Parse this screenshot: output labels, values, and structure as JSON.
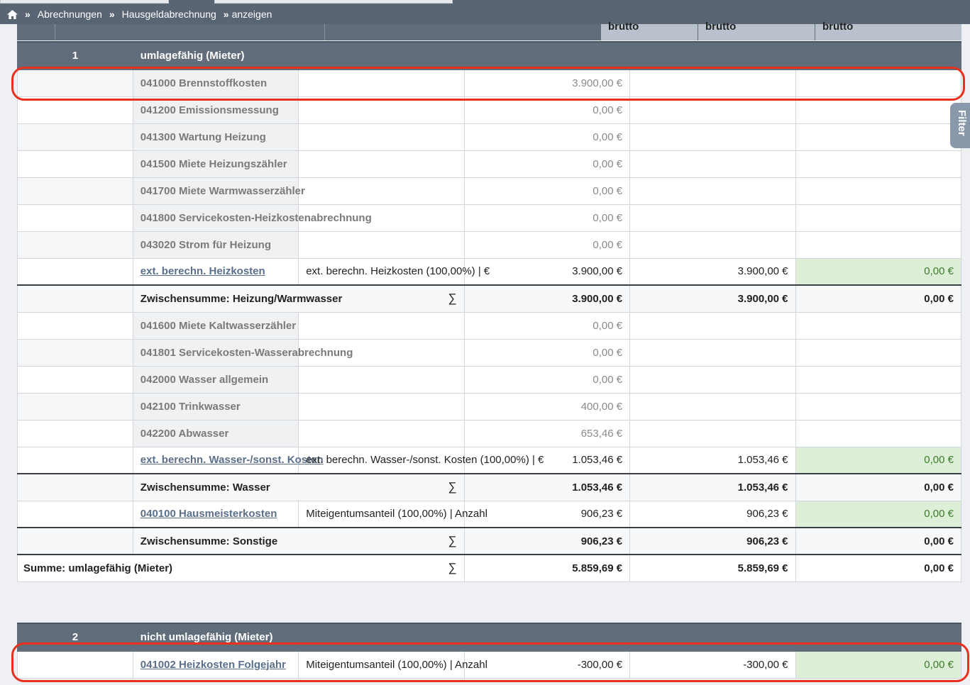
{
  "breadcrumb": {
    "items": [
      "Abrechnungen",
      "Hausgeldabrechnung",
      "anzeigen"
    ],
    "separator": "»"
  },
  "header": {
    "col3": "brutto",
    "col4": "brutto",
    "col5": "brutto"
  },
  "filter_tab": {
    "label": "Filter"
  },
  "section1": {
    "number": "1",
    "title": "umlagefähig (Mieter)",
    "rows": [
      {
        "label": "041000 Brennstoffkosten",
        "amount": "3.900,00 €"
      },
      {
        "label": "041200 Emissionsmessung",
        "amount": "0,00 €"
      },
      {
        "label": "041300 Wartung Heizung",
        "amount": "0,00 €"
      },
      {
        "label": "041500 Miete Heizungszähler",
        "amount": "0,00 €"
      },
      {
        "label": "041700 Miete Warmwasserzähler",
        "amount": "0,00 €"
      },
      {
        "label": "041800 Servicekosten-Heizkostenabrechnung",
        "amount": "0,00 €"
      },
      {
        "label": "043020 Strom für Heizung",
        "amount": "0,00 €"
      }
    ],
    "ext_heiz": {
      "label": "ext. berechn. Heizkosten",
      "key": "ext. berechn. Heizkosten (100,00%) | €",
      "brutto": "3.900,00 €",
      "verteilt": "3.900,00 €",
      "diff": "0,00 €"
    },
    "sub_heiz": {
      "label": "Zwischensumme: Heizung/Warmwasser",
      "sigma": "∑",
      "brutto": "3.900,00 €",
      "verteilt": "3.900,00 €",
      "diff": "0,00 €"
    },
    "water_rows": [
      {
        "label": "041600 Miete Kaltwasserzähler",
        "amount": "0,00 €"
      },
      {
        "label": "041801 Servicekosten-Wasserabrechnung",
        "amount": "0,00 €"
      },
      {
        "label": "042000 Wasser allgemein",
        "amount": "0,00 €"
      },
      {
        "label": "042100 Trinkwasser",
        "amount": "400,00 €"
      },
      {
        "label": "042200 Abwasser",
        "amount": "653,46 €"
      }
    ],
    "ext_wasser": {
      "label": "ext. berechn. Wasser-/sonst. Kosten",
      "key": "ext. berechn. Wasser-/sonst. Kosten (100,00%) | €",
      "brutto": "1.053,46 €",
      "verteilt": "1.053,46 €",
      "diff": "0,00 €"
    },
    "sub_wasser": {
      "label": "Zwischensumme: Wasser",
      "sigma": "∑",
      "brutto": "1.053,46 €",
      "verteilt": "1.053,46 €",
      "diff": "0,00 €"
    },
    "hausmeister": {
      "label": "040100 Hausmeisterkosten",
      "key": "Miteigentumsanteil (100,00%) | Anzahl",
      "brutto": "906,23 €",
      "verteilt": "906,23 €",
      "diff": "0,00 €"
    },
    "sub_sonstige": {
      "label": "Zwischensumme: Sonstige",
      "sigma": "∑",
      "brutto": "906,23 €",
      "verteilt": "906,23 €",
      "diff": "0,00 €"
    },
    "sum": {
      "label": "Summe: umlagefähig (Mieter)",
      "sigma": "∑",
      "brutto": "5.859,69 €",
      "verteilt": "5.859,69 €",
      "diff": "0,00 €"
    }
  },
  "section2": {
    "number": "2",
    "title": "nicht umlagefähig (Mieter)",
    "row": {
      "label": "041002 Heizkosten Folgejahr",
      "key": "Miteigentumsanteil (100,00%) | Anzahl",
      "brutto": "-300,00 €",
      "verteilt": "-300,00 €",
      "diff": "0,00 €"
    }
  }
}
